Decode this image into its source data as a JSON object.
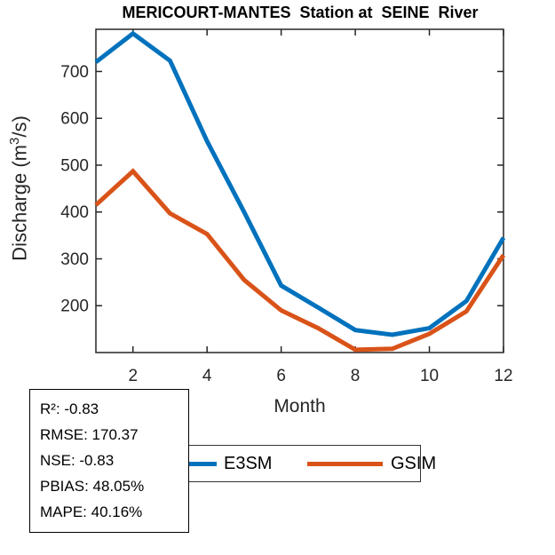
{
  "title": "MERICOURT-MANTES  Station at  SEINE  River",
  "chart_data": {
    "type": "line",
    "title": "MERICOURT-MANTES  Station at  SEINE  River",
    "xlabel": "Month",
    "ylabel": "Discharge (m³/s)",
    "ylabel_parts": {
      "pre": "Discharge (m",
      "sup": "3",
      "post": "/s)"
    },
    "x": [
      1,
      2,
      3,
      4,
      5,
      6,
      7,
      8,
      9,
      10,
      11,
      12
    ],
    "series": [
      {
        "name": "E3SM",
        "color": "#0072BD",
        "values": [
          720,
          781,
          723,
          551,
          400,
          243,
          196,
          148,
          138,
          152,
          210,
          345
        ]
      },
      {
        "name": "GSIM",
        "color": "#D95319",
        "values": [
          415,
          487,
          397,
          353,
          255,
          190,
          152,
          106,
          108,
          140,
          188,
          308
        ]
      }
    ],
    "xlim": [
      1,
      12
    ],
    "ylim": [
      100,
      790
    ],
    "xticks": [
      2,
      4,
      6,
      8,
      10,
      12
    ],
    "yticks": [
      200,
      300,
      400,
      500,
      600,
      700
    ],
    "grid": false,
    "legend_position": "below-outside-horizontal",
    "axis_color": "#262626",
    "line_width": 5
  },
  "stats_box": {
    "lines": [
      "R²: -0.83",
      "RMSE: 170.37",
      "NSE: -0.83",
      "PBIAS: 48.05%",
      "MAPE: 40.16%"
    ]
  },
  "legend": {
    "items": [
      {
        "label": "E3SM",
        "color": "#0072BD"
      },
      {
        "label": "GSIM",
        "color": "#D95319"
      }
    ]
  }
}
